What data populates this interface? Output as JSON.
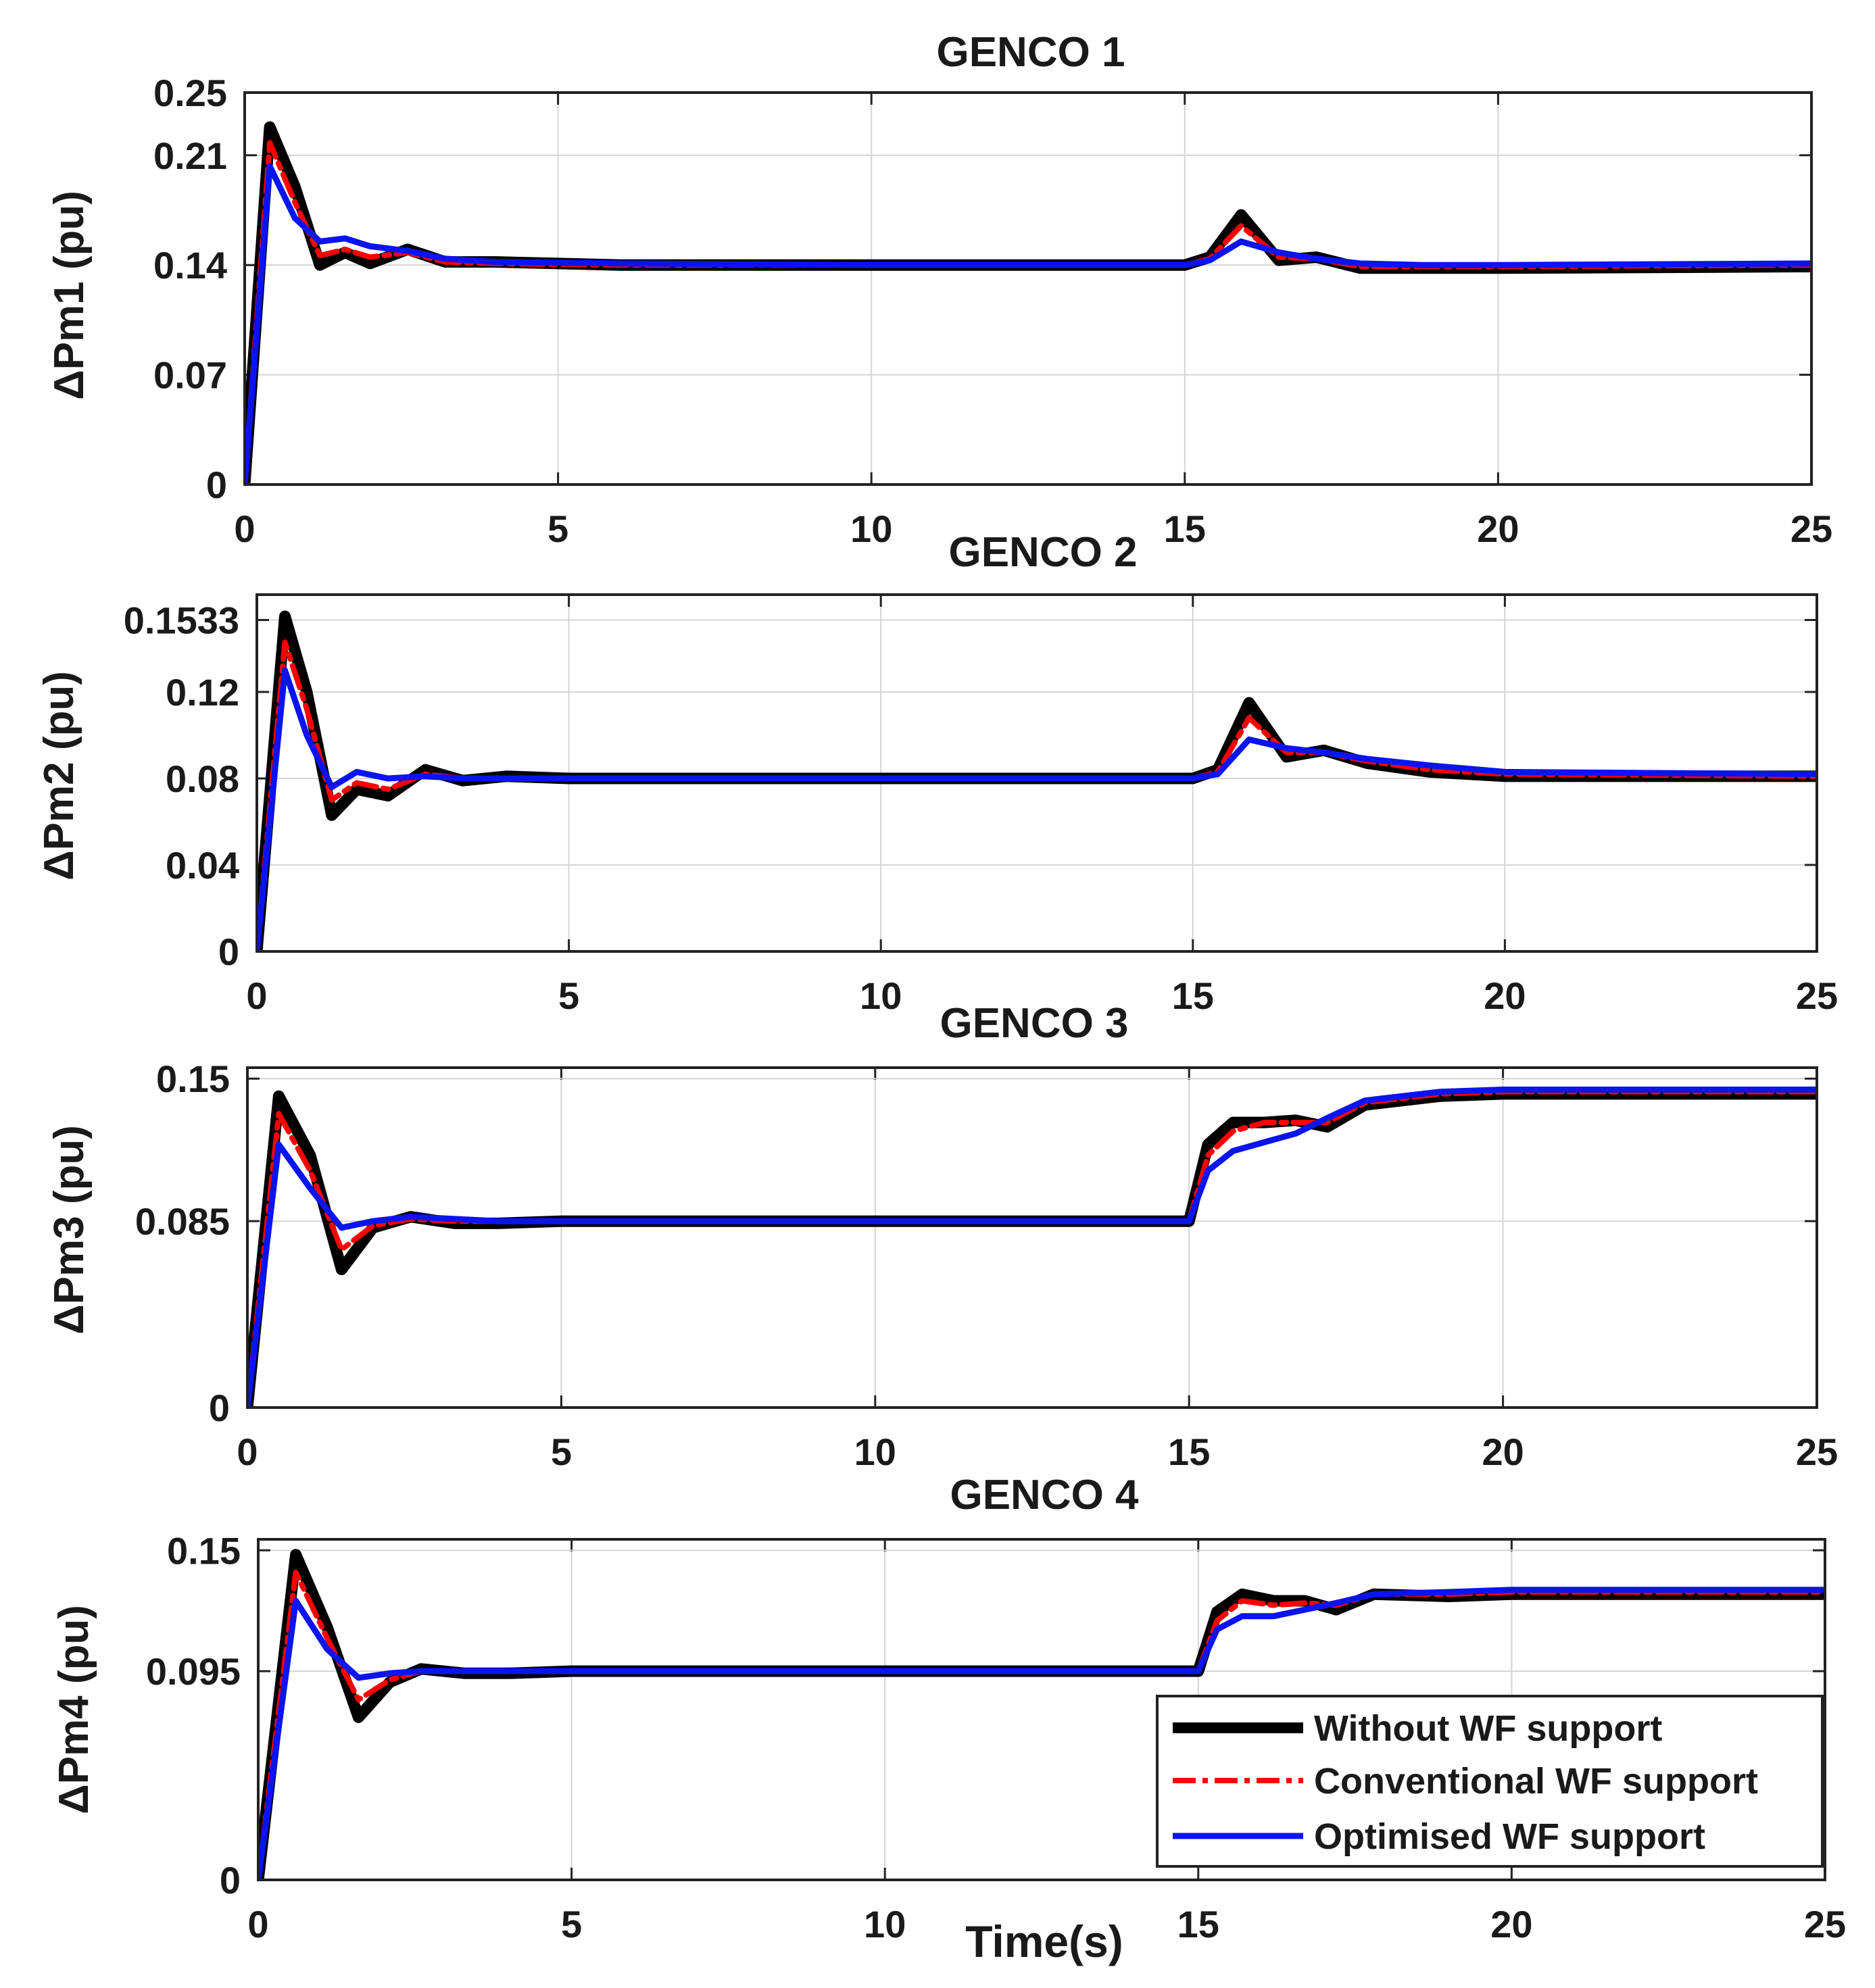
{
  "chart_data": {
    "type": "line",
    "x_label": "Time(s)",
    "series_names": [
      "Without WF support",
      "Conventional WF support",
      "Optimised WF support"
    ],
    "colors": {
      "without": "#000000",
      "conventional": "#ff0000",
      "optimised": "#0a14f0"
    },
    "legend": {
      "position": "bottom-right of GENCO 4 panel",
      "entries": [
        "Without WF support",
        "Conventional WF support",
        "Optimised WF support"
      ]
    },
    "panels": [
      {
        "title": "GENCO 1",
        "ylabel": "ΔPm1 (pu)",
        "xlim": [
          0,
          25
        ],
        "ylim": [
          0,
          0.25
        ],
        "xticks": [
          "0",
          "5",
          "10",
          "15",
          "20",
          "25"
        ],
        "yticks": [
          {
            "value": 0,
            "label": "0"
          },
          {
            "value": 0.07,
            "label": "0.07"
          },
          {
            "value": 0.14,
            "label": "0.14"
          },
          {
            "value": 0.21,
            "label": "0.21"
          },
          {
            "value": 0.25,
            "label": "0.25"
          }
        ],
        "series": [
          {
            "name": "Without WF support",
            "x": [
              0,
              0.4,
              0.8,
              1.2,
              1.6,
              2.0,
              2.6,
              3.2,
              4,
              6,
              10,
              15,
              15.4,
              15.9,
              16.5,
              17.1,
              17.8,
              18.8,
              20,
              25
            ],
            "y": [
              0,
              0.228,
              0.19,
              0.14,
              0.148,
              0.141,
              0.15,
              0.142,
              0.142,
              0.14,
              0.14,
              0.14,
              0.145,
              0.172,
              0.143,
              0.145,
              0.138,
              0.138,
              0.138,
              0.139
            ]
          },
          {
            "name": "Conventional WF support",
            "x": [
              0,
              0.4,
              0.8,
              1.2,
              1.6,
              2.0,
              2.6,
              3.2,
              4,
              6,
              10,
              15,
              15.4,
              15.9,
              16.5,
              17.1,
              17.8,
              18.8,
              20,
              25
            ],
            "y": [
              0,
              0.218,
              0.18,
              0.146,
              0.15,
              0.145,
              0.148,
              0.142,
              0.141,
              0.14,
              0.14,
              0.14,
              0.144,
              0.165,
              0.145,
              0.144,
              0.139,
              0.139,
              0.139,
              0.14
            ]
          },
          {
            "name": "Optimised WF support",
            "x": [
              0,
              0.4,
              0.8,
              1.2,
              1.6,
              2.0,
              2.6,
              3.2,
              4,
              6,
              10,
              15,
              15.4,
              15.9,
              16.5,
              17.1,
              17.8,
              18.8,
              20,
              25
            ],
            "y": [
              0,
              0.203,
              0.17,
              0.155,
              0.157,
              0.152,
              0.149,
              0.144,
              0.142,
              0.141,
              0.14,
              0.14,
              0.143,
              0.155,
              0.148,
              0.144,
              0.141,
              0.14,
              0.14,
              0.141
            ]
          }
        ]
      },
      {
        "title": "GENCO 2",
        "ylabel": "ΔPm2 (pu)",
        "xlim": [
          0,
          25
        ],
        "ylim": [
          0,
          0.165
        ],
        "xticks": [
          "0",
          "5",
          "10",
          "15",
          "20",
          "25"
        ],
        "yticks": [
          {
            "value": 0,
            "label": "0"
          },
          {
            "value": 0.04,
            "label": "0.04"
          },
          {
            "value": 0.08,
            "label": "0.08"
          },
          {
            "value": 0.12,
            "label": "0.12"
          },
          {
            "value": 0.1533,
            "label": "0.1533"
          }
        ],
        "series": [
          {
            "name": "Without WF support",
            "x": [
              0,
              0.45,
              0.8,
              1.2,
              1.6,
              2.1,
              2.7,
              3.3,
              4,
              5,
              10,
              15,
              15.4,
              15.9,
              16.5,
              17.1,
              17.8,
              18.8,
              20,
              25
            ],
            "y": [
              0,
              0.155,
              0.12,
              0.063,
              0.075,
              0.072,
              0.084,
              0.079,
              0.081,
              0.08,
              0.08,
              0.08,
              0.084,
              0.115,
              0.09,
              0.093,
              0.087,
              0.083,
              0.081,
              0.081
            ]
          },
          {
            "name": "Conventional WF support",
            "x": [
              0,
              0.45,
              0.8,
              1.2,
              1.6,
              2.1,
              2.7,
              3.3,
              4,
              5,
              10,
              15,
              15.4,
              15.9,
              16.5,
              17.1,
              17.8,
              18.8,
              20,
              25
            ],
            "y": [
              0,
              0.143,
              0.112,
              0.07,
              0.078,
              0.075,
              0.082,
              0.08,
              0.08,
              0.08,
              0.08,
              0.08,
              0.083,
              0.108,
              0.092,
              0.092,
              0.088,
              0.084,
              0.082,
              0.081
            ]
          },
          {
            "name": "Optimised WF support",
            "x": [
              0,
              0.45,
              0.8,
              1.2,
              1.6,
              2.1,
              2.7,
              3.3,
              4,
              5,
              10,
              15,
              15.4,
              15.9,
              16.5,
              17.1,
              17.8,
              18.8,
              20,
              25
            ],
            "y": [
              0,
              0.13,
              0.1,
              0.076,
              0.083,
              0.08,
              0.081,
              0.08,
              0.08,
              0.08,
              0.08,
              0.08,
              0.082,
              0.098,
              0.094,
              0.092,
              0.089,
              0.086,
              0.083,
              0.082
            ]
          }
        ]
      },
      {
        "title": "GENCO 3",
        "ylabel": "ΔPm3 (pu)",
        "xlim": [
          0,
          25
        ],
        "ylim": [
          0,
          0.155
        ],
        "xticks": [
          "0",
          "5",
          "10",
          "15",
          "20",
          "25"
        ],
        "yticks": [
          {
            "value": 0,
            "label": "0"
          },
          {
            "value": 0.085,
            "label": "0.085"
          },
          {
            "value": 0.15,
            "label": "0.15"
          }
        ],
        "series": [
          {
            "name": "Without WF support",
            "x": [
              0,
              0.5,
              1.0,
              1.5,
              2.0,
              2.6,
              3.3,
              4,
              5,
              10,
              15,
              15.3,
              15.7,
              16.2,
              16.7,
              17.2,
              17.8,
              19,
              20,
              25
            ],
            "y": [
              0,
              0.142,
              0.115,
              0.063,
              0.082,
              0.087,
              0.084,
              0.084,
              0.085,
              0.085,
              0.085,
              0.12,
              0.13,
              0.13,
              0.131,
              0.128,
              0.138,
              0.142,
              0.143,
              0.143
            ]
          },
          {
            "name": "Conventional WF support",
            "x": [
              0,
              0.5,
              1.0,
              1.5,
              2.0,
              2.6,
              3.3,
              4,
              5,
              10,
              15,
              15.3,
              15.7,
              16.2,
              16.7,
              17.2,
              17.8,
              19,
              20,
              25
            ],
            "y": [
              0,
              0.134,
              0.108,
              0.072,
              0.083,
              0.086,
              0.085,
              0.085,
              0.085,
              0.085,
              0.085,
              0.115,
              0.126,
              0.13,
              0.13,
              0.13,
              0.139,
              0.143,
              0.144,
              0.144
            ]
          },
          {
            "name": "Optimised WF support",
            "x": [
              0,
              0.5,
              1.0,
              1.5,
              2.0,
              2.6,
              3.3,
              4,
              5,
              10,
              15,
              15.3,
              15.7,
              16.2,
              16.7,
              17.2,
              17.8,
              19,
              20,
              25
            ],
            "y": [
              0,
              0.12,
              0.1,
              0.082,
              0.085,
              0.087,
              0.086,
              0.085,
              0.085,
              0.085,
              0.085,
              0.108,
              0.117,
              0.121,
              0.125,
              0.132,
              0.14,
              0.144,
              0.145,
              0.145
            ]
          }
        ]
      },
      {
        "title": "GENCO 4",
        "ylabel": "ΔPm4 (pu)",
        "xlim": [
          0,
          25
        ],
        "ylim": [
          0,
          0.155
        ],
        "xticks": [
          "0",
          "5",
          "10",
          "15",
          "20",
          "25"
        ],
        "yticks": [
          {
            "value": 0,
            "label": "0"
          },
          {
            "value": 0.095,
            "label": "0.095"
          },
          {
            "value": 0.15,
            "label": "0.15"
          }
        ],
        "series": [
          {
            "name": "Without WF support",
            "x": [
              0,
              0.6,
              1.1,
              1.6,
              2.1,
              2.6,
              3.3,
              4,
              5,
              10,
              15,
              15.3,
              15.7,
              16.2,
              16.7,
              17.2,
              17.8,
              19,
              20,
              25
            ],
            "y": [
              0,
              0.148,
              0.115,
              0.074,
              0.09,
              0.096,
              0.094,
              0.094,
              0.095,
              0.095,
              0.095,
              0.122,
              0.13,
              0.127,
              0.127,
              0.123,
              0.13,
              0.129,
              0.13,
              0.13
            ]
          },
          {
            "name": "Conventional WF support",
            "x": [
              0,
              0.6,
              1.1,
              1.6,
              2.1,
              2.6,
              3.3,
              4,
              5,
              10,
              15,
              15.3,
              15.7,
              16.2,
              16.7,
              17.2,
              17.8,
              19,
              20,
              25
            ],
            "y": [
              0,
              0.14,
              0.11,
              0.082,
              0.091,
              0.095,
              0.095,
              0.095,
              0.095,
              0.095,
              0.095,
              0.118,
              0.127,
              0.125,
              0.126,
              0.125,
              0.13,
              0.13,
              0.131,
              0.131
            ]
          },
          {
            "name": "Optimised WF support",
            "x": [
              0,
              0.6,
              1.1,
              1.6,
              2.1,
              2.6,
              3.3,
              4,
              5,
              10,
              15,
              15.3,
              15.7,
              16.2,
              16.7,
              17.2,
              17.8,
              19,
              20,
              25
            ],
            "y": [
              0,
              0.127,
              0.105,
              0.092,
              0.094,
              0.095,
              0.095,
              0.095,
              0.095,
              0.095,
              0.095,
              0.114,
              0.12,
              0.12,
              0.123,
              0.126,
              0.13,
              0.131,
              0.132,
              0.132
            ]
          }
        ]
      }
    ]
  }
}
